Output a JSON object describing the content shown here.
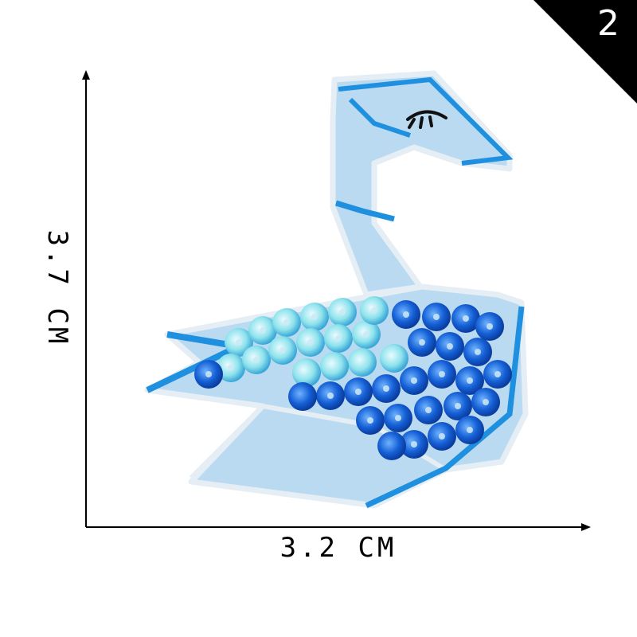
{
  "badge": {
    "number": "2"
  },
  "dimensions": {
    "width_label": "3.2 CM",
    "height_label": "3.7 CM"
  },
  "colors": {
    "felt": "#b9daf0",
    "stitch": "#e6eef5",
    "accent_blue": "#1f8fe0",
    "sequin_light": "#8fe3ec",
    "sequin_dark": "#0f56c9"
  }
}
